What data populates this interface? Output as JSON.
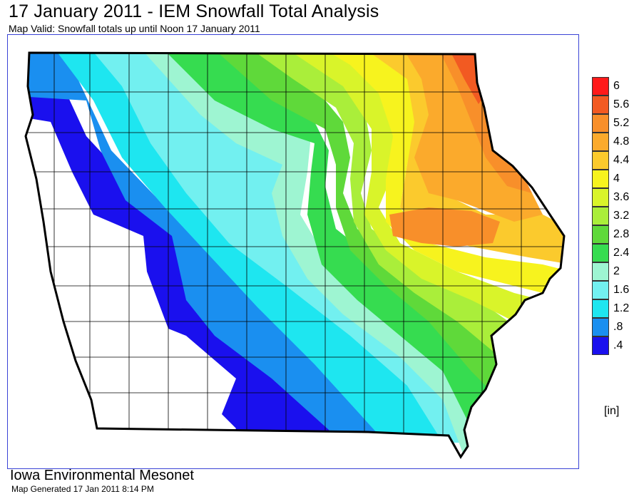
{
  "header": {
    "title": "17 January 2011 - IEM Snowfall Total Analysis",
    "subtitle": "Map Valid: Snowfall totals up until Noon 17 January 2011"
  },
  "legend": {
    "units": "[in]",
    "levels": [
      {
        "label": "6",
        "color": "#ff1a1a"
      },
      {
        "label": "5.6",
        "color": "#f25a22"
      },
      {
        "label": "5.2",
        "color": "#f88f2a"
      },
      {
        "label": "4.8",
        "color": "#fbaa2c"
      },
      {
        "label": "4.4",
        "color": "#fbca2d"
      },
      {
        "label": "4",
        "color": "#f7f31e"
      },
      {
        "label": "3.6",
        "color": "#d9f42a"
      },
      {
        "label": "3.2",
        "color": "#aaee3a"
      },
      {
        "label": "2.8",
        "color": "#5fd93a"
      },
      {
        "label": "2.4",
        "color": "#36dc50"
      },
      {
        "label": "2",
        "color": "#9ef5d2"
      },
      {
        "label": "1.6",
        "color": "#72f0f0"
      },
      {
        "label": "1.2",
        "color": "#1ee6f0"
      },
      {
        "label": ".8",
        "color": "#1a8ff0"
      },
      {
        "label": ".4",
        "color": "#1a10ee"
      }
    ]
  },
  "footer": {
    "organization": "Iowa Environmental Mesonet",
    "generated": "Map Generated 17 Jan 2011 8:14 PM"
  },
  "map": {
    "region": "Iowa",
    "no_snow_color": "#ffffff",
    "state_outline_color": "#000000",
    "frame_color": "#3a43d6"
  }
}
